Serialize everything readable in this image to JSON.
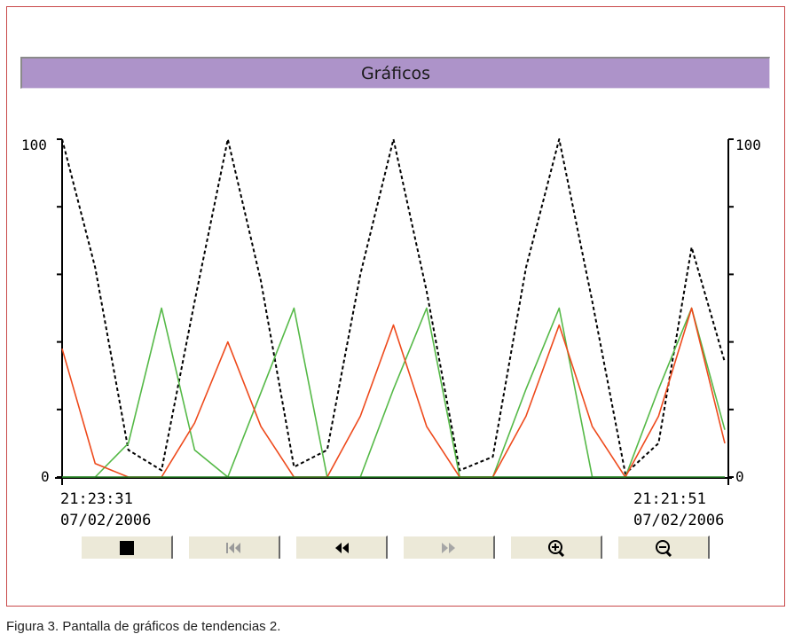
{
  "window": {
    "title": "Gráficos"
  },
  "axes": {
    "left_max_label": "100",
    "left_min_label": "0",
    "right_max_label": "100",
    "right_min_label": "0"
  },
  "time_axis": {
    "start_time": "21:23:31",
    "start_date": "07/02/2006",
    "end_time": "21:21:51",
    "end_date": "07/02/2006"
  },
  "toolbar": {
    "buttons": [
      {
        "icon": "stop-icon",
        "enabled": true
      },
      {
        "icon": "skip-to-start-icon",
        "enabled": false
      },
      {
        "icon": "rewind-icon",
        "enabled": true
      },
      {
        "icon": "fast-forward-icon",
        "enabled": false
      },
      {
        "icon": "zoom-in-icon",
        "enabled": true
      },
      {
        "icon": "zoom-out-icon",
        "enabled": true
      }
    ]
  },
  "caption": "Figura 3. Pantalla de gráficos de tendencias 2.",
  "colors": {
    "title_bar": "#ad93c9",
    "black_series": "#000000",
    "green_series": "#55b947",
    "red_series": "#ee4a1c",
    "baseline_series": "#1f7a1f",
    "frame_border": "#c9494a"
  },
  "chart_data": {
    "type": "line",
    "ylim": [
      0,
      100
    ],
    "x_start_label": "21:23:31 07/02/2006",
    "x_end_label": "21:21:51 07/02/2006",
    "x": [
      0,
      5,
      10,
      15,
      20,
      25,
      30,
      35,
      40,
      45,
      50,
      55,
      60,
      65,
      70,
      75,
      80,
      85,
      90,
      95,
      100
    ],
    "series": [
      {
        "color": "#000000",
        "style": "dashed",
        "values": [
          100,
          62,
          8,
          2,
          52,
          100,
          58,
          3,
          8,
          60,
          100,
          55,
          2,
          6,
          62,
          100,
          52,
          1,
          10,
          68,
          34
        ]
      },
      {
        "color": "#55b947",
        "style": "solid",
        "values": [
          0,
          0,
          10,
          50,
          8,
          0,
          25,
          50,
          0,
          0,
          26,
          50,
          0,
          0,
          26,
          50,
          0,
          0,
          26,
          50,
          14
        ]
      },
      {
        "color": "#ee4a1c",
        "style": "solid",
        "values": [
          38,
          4,
          0,
          0,
          16,
          40,
          15,
          0,
          0,
          18,
          45,
          15,
          0,
          0,
          18,
          45,
          15,
          0,
          18,
          50,
          10
        ]
      },
      {
        "color": "#1f7a1f",
        "style": "solid",
        "values": [
          0,
          0,
          0,
          0,
          0,
          0,
          0,
          0,
          0,
          0,
          0,
          0,
          0,
          0,
          0,
          0,
          0,
          0,
          0,
          0,
          0
        ]
      }
    ]
  }
}
